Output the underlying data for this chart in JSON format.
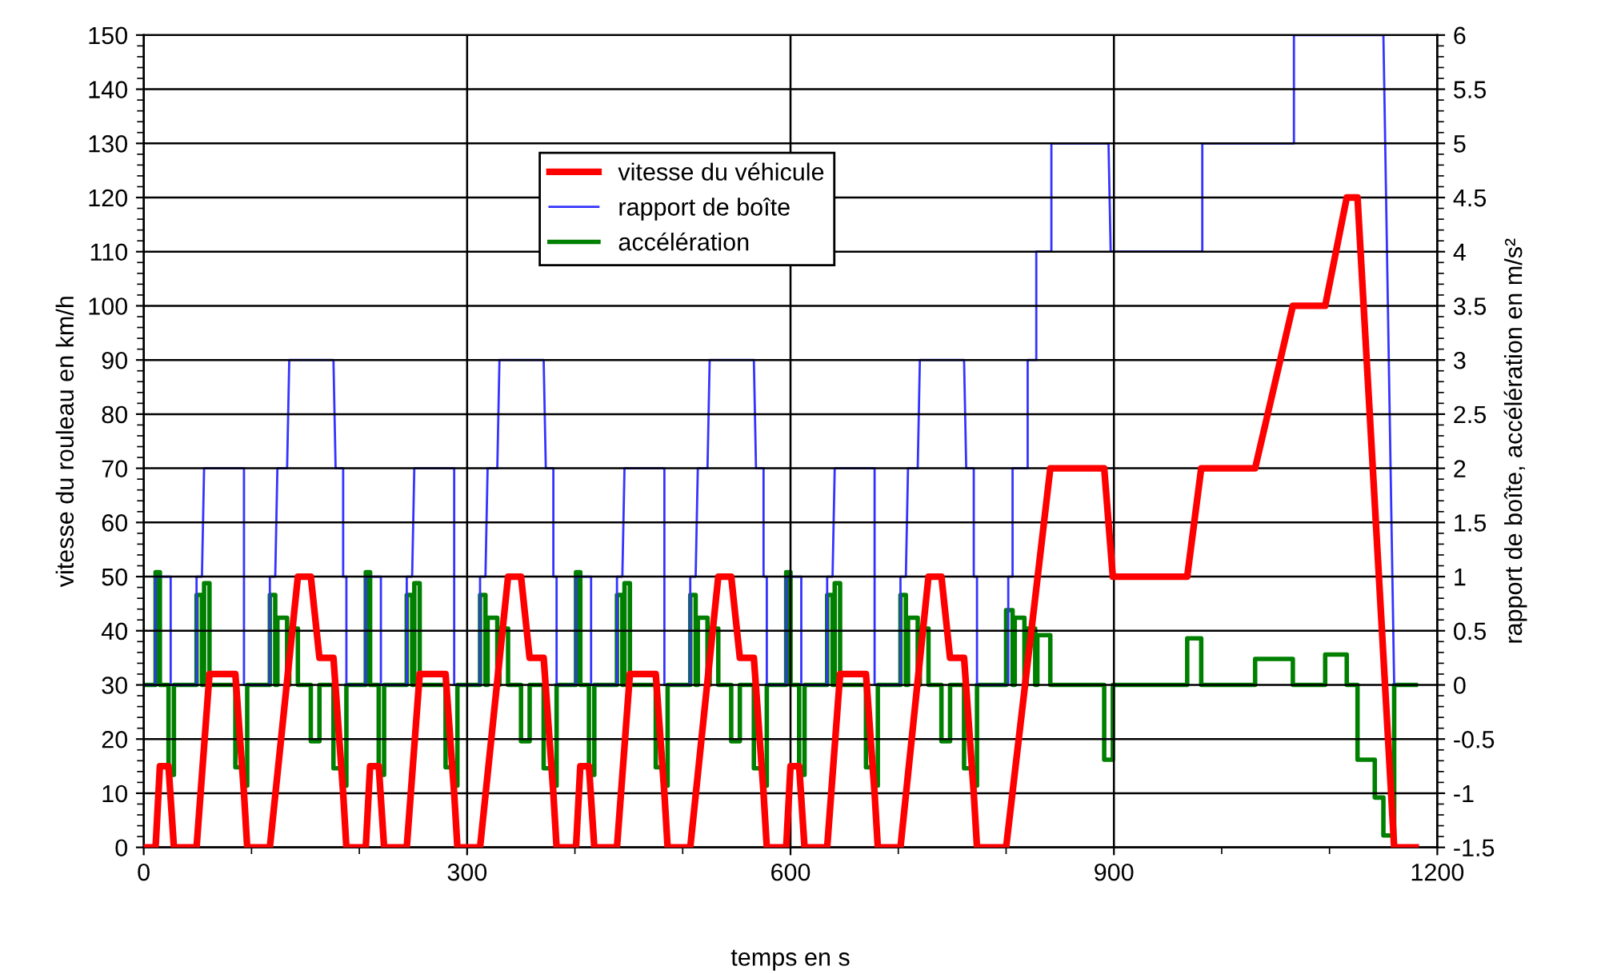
{
  "chart_data": {
    "type": "line",
    "xlabel": "temps en s",
    "ylabel": "vitesse du rouleau en km/h",
    "y2label": "rapport de boîte, accélération en m/s²",
    "xlim": [
      0,
      1200
    ],
    "xticks": [
      0,
      300,
      600,
      900,
      1200
    ],
    "ylim": [
      0,
      150
    ],
    "yticks": [
      0,
      10,
      20,
      30,
      40,
      50,
      60,
      70,
      80,
      90,
      100,
      110,
      120,
      130,
      140,
      150
    ],
    "y2lim": [
      -1.5,
      6
    ],
    "y2ticks": [
      -1.5,
      -1,
      -0.5,
      0,
      0.5,
      1,
      1.5,
      2,
      2.5,
      3,
      3.5,
      4,
      4.5,
      5,
      5.5,
      6
    ],
    "grid": true,
    "legend": "top",
    "marker": "none",
    "line_style": "solid",
    "series": [
      {
        "name": "vitesse du véhicule",
        "color": "#ff0000",
        "x": [
          0,
          11,
          15,
          23,
          28,
          49,
          61,
          85,
          93,
          96,
          117,
          143,
          155,
          163,
          176,
          185,
          188,
          195,
          206,
          210,
          218,
          223,
          244,
          256,
          280,
          288,
          291,
          312,
          338,
          350,
          358,
          371,
          380,
          383,
          390,
          401,
          405,
          413,
          418,
          439,
          451,
          475,
          483,
          486,
          507,
          533,
          545,
          553,
          566,
          575,
          578,
          585,
          596,
          600,
          608,
          613,
          634,
          646,
          670,
          678,
          681,
          702,
          728,
          740,
          748,
          761,
          770,
          773,
          780,
          800,
          841,
          891,
          899,
          968,
          981,
          1031,
          1066,
          1096,
          1116,
          1126,
          1160,
          1180
        ],
        "values": [
          0,
          0,
          15,
          15,
          0,
          0,
          32,
          32,
          10,
          0,
          0,
          50,
          50,
          35,
          35,
          10,
          0,
          0,
          0,
          15,
          15,
          0,
          0,
          32,
          32,
          10,
          0,
          0,
          50,
          50,
          35,
          35,
          10,
          0,
          0,
          0,
          15,
          15,
          0,
          0,
          32,
          32,
          10,
          0,
          0,
          50,
          50,
          35,
          35,
          10,
          0,
          0,
          0,
          15,
          15,
          0,
          0,
          32,
          32,
          10,
          0,
          0,
          50,
          50,
          35,
          35,
          10,
          0,
          0,
          0,
          70,
          70,
          50,
          50,
          70,
          70,
          100,
          100,
          120,
          120,
          0,
          0
        ]
      },
      {
        "name": "rapport de boîte",
        "color": "#3333ff",
        "axis": "y2",
        "x": [
          0,
          11,
          11,
          25,
          25,
          49,
          49,
          54,
          56,
          93,
          93,
          117,
          117,
          122,
          124,
          133,
          135,
          176,
          178,
          185,
          185,
          188,
          188,
          195,
          206,
          206,
          220,
          220,
          244,
          244,
          249,
          251,
          288,
          288,
          312,
          312,
          317,
          319,
          328,
          330,
          371,
          373,
          380,
          380,
          383,
          383,
          390,
          401,
          401,
          415,
          415,
          439,
          439,
          444,
          446,
          483,
          483,
          507,
          507,
          512,
          514,
          523,
          525,
          566,
          568,
          575,
          575,
          578,
          578,
          585,
          596,
          596,
          610,
          610,
          634,
          634,
          639,
          641,
          678,
          678,
          702,
          702,
          707,
          709,
          718,
          720,
          761,
          763,
          770,
          770,
          773,
          773,
          802,
          802,
          806,
          806,
          820,
          820,
          828,
          828,
          842,
          842,
          895,
          897,
          982,
          982,
          1067,
          1067,
          1150,
          1160
        ],
        "values": [
          0,
          0,
          1,
          1,
          0,
          0,
          1,
          1,
          2,
          2,
          0,
          0,
          1,
          1,
          2,
          2,
          3,
          3,
          2,
          2,
          1,
          1,
          0,
          0,
          0,
          1,
          1,
          0,
          0,
          1,
          1,
          2,
          2,
          0,
          0,
          1,
          1,
          2,
          2,
          3,
          3,
          2,
          2,
          1,
          1,
          0,
          0,
          0,
          1,
          1,
          0,
          0,
          1,
          1,
          2,
          2,
          0,
          0,
          1,
          1,
          2,
          2,
          3,
          3,
          2,
          2,
          1,
          1,
          0,
          0,
          0,
          1,
          1,
          0,
          0,
          1,
          1,
          2,
          2,
          0,
          0,
          1,
          1,
          2,
          2,
          3,
          3,
          2,
          2,
          1,
          1,
          0,
          0,
          1,
          1,
          2,
          2,
          3,
          3,
          4,
          4,
          5,
          5,
          4,
          4,
          5,
          5,
          6,
          6,
          0
        ]
      },
      {
        "name": "accélération",
        "color": "#008000",
        "axis": "y2",
        "x": [
          0,
          11,
          11,
          15,
          15,
          23,
          23,
          28,
          28,
          49,
          49,
          54,
          54,
          56,
          56,
          61,
          61,
          85,
          85,
          93,
          93,
          96,
          96,
          117,
          117,
          122,
          122,
          124,
          124,
          133,
          133,
          135,
          135,
          143,
          143,
          155,
          155,
          163,
          163,
          176,
          176,
          185,
          185,
          188,
          188,
          195,
          206,
          206,
          210,
          210,
          218,
          218,
          223,
          223,
          244,
          244,
          249,
          249,
          251,
          251,
          256,
          256,
          280,
          280,
          288,
          288,
          291,
          291,
          312,
          312,
          317,
          317,
          319,
          319,
          328,
          328,
          330,
          330,
          338,
          338,
          350,
          350,
          358,
          358,
          371,
          371,
          380,
          380,
          383,
          383,
          390,
          401,
          401,
          405,
          405,
          413,
          413,
          418,
          418,
          439,
          439,
          444,
          444,
          446,
          446,
          451,
          451,
          475,
          475,
          483,
          483,
          486,
          486,
          507,
          507,
          512,
          512,
          514,
          514,
          523,
          523,
          525,
          525,
          533,
          533,
          545,
          545,
          553,
          553,
          566,
          566,
          575,
          575,
          578,
          578,
          585,
          596,
          596,
          600,
          600,
          608,
          608,
          613,
          613,
          634,
          634,
          639,
          639,
          641,
          641,
          646,
          646,
          670,
          670,
          678,
          678,
          681,
          681,
          702,
          702,
          707,
          707,
          709,
          709,
          718,
          718,
          720,
          720,
          728,
          728,
          740,
          740,
          748,
          748,
          761,
          761,
          770,
          770,
          773,
          773,
          800,
          800,
          806,
          806,
          808,
          808,
          817,
          817,
          819,
          819,
          827,
          827,
          829,
          829,
          841,
          841,
          891,
          891,
          899,
          899,
          968,
          968,
          981,
          981,
          1031,
          1031,
          1066,
          1066,
          1096,
          1096,
          1116,
          1116,
          1126,
          1126,
          1142,
          1142,
          1150,
          1150,
          1160,
          1160,
          1180
        ],
        "values": [
          0,
          0,
          1.04,
          1.04,
          0,
          0,
          -0.83,
          -0.83,
          0,
          0,
          0.83,
          0.83,
          0,
          0,
          0.94,
          0.94,
          0,
          0,
          -0.76,
          -0.76,
          -0.93,
          -0.93,
          0,
          0,
          0.83,
          0.83,
          0,
          0,
          0.62,
          0.62,
          0,
          0,
          0.52,
          0.52,
          0,
          0,
          -0.52,
          -0.52,
          0,
          0,
          -0.77,
          -0.77,
          -0.93,
          -0.93,
          0,
          0,
          0,
          1.04,
          1.04,
          0,
          0,
          -0.83,
          -0.83,
          0,
          0,
          0.83,
          0.83,
          0,
          0,
          0.94,
          0.94,
          0,
          0,
          -0.76,
          -0.76,
          -0.93,
          -0.93,
          0,
          0,
          0.83,
          0.83,
          0,
          0,
          0.62,
          0.62,
          0,
          0,
          0.52,
          0.52,
          0,
          0,
          -0.52,
          -0.52,
          0,
          0,
          -0.77,
          -0.77,
          -0.93,
          -0.93,
          0,
          0,
          0,
          1.04,
          1.04,
          0,
          0,
          -0.83,
          -0.83,
          0,
          0,
          0.83,
          0.83,
          0,
          0,
          0.94,
          0.94,
          0,
          0,
          -0.76,
          -0.76,
          -0.93,
          -0.93,
          0,
          0,
          0.83,
          0.83,
          0,
          0,
          0.62,
          0.62,
          0,
          0,
          0.52,
          0.52,
          0,
          0,
          -0.52,
          -0.52,
          0,
          0,
          -0.77,
          -0.77,
          -0.93,
          -0.93,
          0,
          0,
          0,
          1.04,
          1.04,
          0,
          0,
          -0.83,
          -0.83,
          0,
          0,
          0.83,
          0.83,
          0,
          0,
          0.94,
          0.94,
          0,
          0,
          -0.76,
          -0.76,
          -0.93,
          -0.93,
          0,
          0,
          0.83,
          0.83,
          0,
          0,
          0.62,
          0.62,
          0,
          0,
          0.52,
          0.52,
          0,
          0,
          -0.52,
          -0.52,
          0,
          0,
          -0.77,
          -0.77,
          -0.93,
          -0.93,
          0,
          0,
          0.69,
          0.69,
          0,
          0,
          0.62,
          0.62,
          0,
          0,
          0.52,
          0.52,
          0,
          0,
          0.46,
          0.46,
          0,
          0,
          -0.69,
          -0.69,
          0,
          0,
          0.43,
          0.43,
          0,
          0,
          0.24,
          0.24,
          0,
          0,
          0.28,
          0.28,
          0,
          0,
          -0.69,
          -0.69,
          -1.04,
          -1.04,
          -1.39,
          -1.39,
          0,
          0
        ]
      }
    ]
  }
}
